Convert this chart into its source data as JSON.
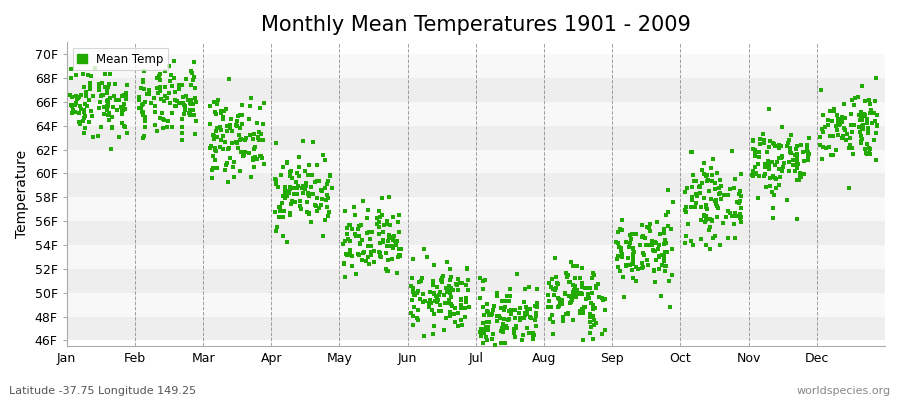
{
  "title": "Monthly Mean Temperatures 1901 - 2009",
  "ylabel": "Temperature",
  "xlabel_months": [
    "Jan",
    "Feb",
    "Mar",
    "Apr",
    "May",
    "Jun",
    "Jul",
    "Aug",
    "Sep",
    "Oct",
    "Nov",
    "Dec"
  ],
  "ytick_labels": [
    "46F",
    "48F",
    "50F",
    "52F",
    "54F",
    "56F",
    "58F",
    "60F",
    "62F",
    "64F",
    "66F",
    "68F",
    "70F"
  ],
  "ytick_values": [
    46,
    48,
    50,
    52,
    54,
    56,
    58,
    60,
    62,
    64,
    66,
    68,
    70
  ],
  "ylim": [
    45.5,
    71.0
  ],
  "dot_color": "#22aa00",
  "dot_size": 5,
  "background_color": "#ffffff",
  "band_colors": [
    "#eeeeee",
    "#f8f8f8"
  ],
  "grid_color": "#666666",
  "title_fontsize": 15,
  "axis_label_fontsize": 10,
  "tick_fontsize": 9,
  "footer_left": "Latitude -37.75 Longitude 149.25",
  "footer_right": "worldspecies.org",
  "legend_label": "Mean Temp",
  "monthly_mean_F": [
    66.0,
    65.8,
    63.0,
    58.5,
    54.0,
    49.5,
    48.0,
    49.5,
    53.5,
    57.5,
    61.0,
    64.0
  ],
  "monthly_std_F": [
    1.5,
    1.5,
    1.6,
    1.6,
    1.6,
    1.4,
    1.4,
    1.5,
    1.6,
    1.6,
    1.6,
    1.5
  ],
  "n_years": 109,
  "seed": 42
}
